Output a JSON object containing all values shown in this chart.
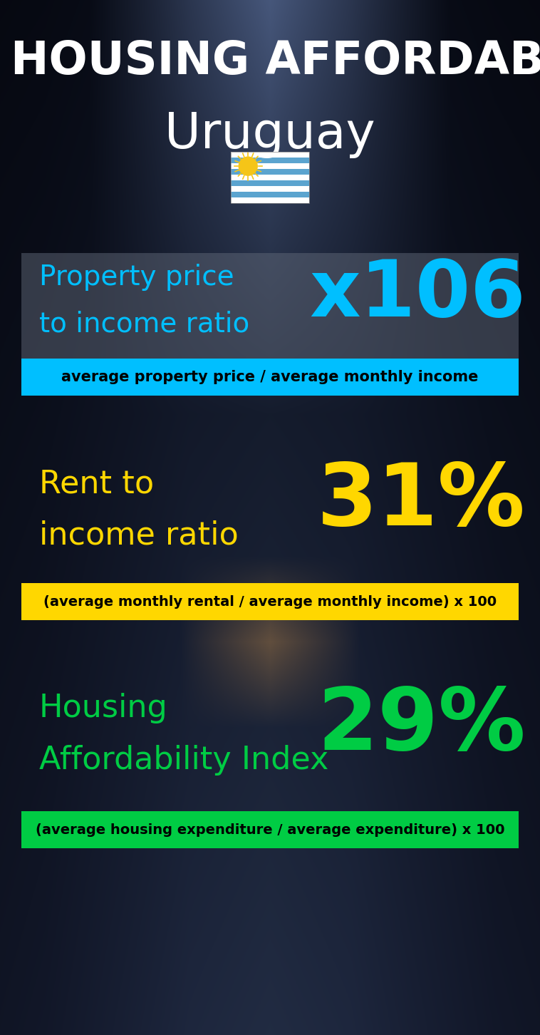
{
  "title_line1": "HOUSING AFFORDABILITY",
  "title_line2": "Uruguay",
  "section1_label_line1": "Property price",
  "section1_label_line2": "to income ratio",
  "section1_value": "x106",
  "section1_label_color": "#00BFFF",
  "section1_value_color": "#00BFFF",
  "section1_banner": "average property price / average monthly income",
  "section1_banner_bg": "#00BFFF",
  "section2_label_line1": "Rent to",
  "section2_label_line2": "income ratio",
  "section2_value": "31%",
  "section2_label_color": "#FFD700",
  "section2_value_color": "#FFD700",
  "section2_banner": "(average monthly rental / average monthly income) x 100",
  "section2_banner_bg": "#FFD700",
  "section3_label_line1": "Housing",
  "section3_label_line2": "Affordability Index",
  "section3_value": "29%",
  "section3_label_color": "#00CC44",
  "section3_value_color": "#00CC44",
  "section3_banner": "(average housing expenditure / average expenditure) x 100",
  "section3_banner_bg": "#00CC44",
  "bg_color": "#0d1520",
  "title_color": "#FFFFFF",
  "banner_text_color": "#000000",
  "fig_width": 7.58,
  "fig_height": 14.52
}
